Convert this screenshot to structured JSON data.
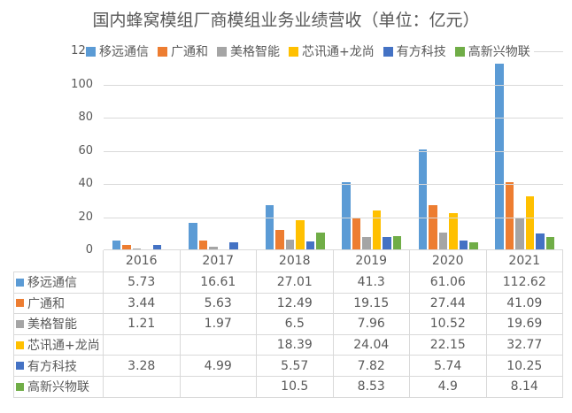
{
  "title": "国内蜂窝模组厂商模组业务业绩营收（单位：亿元）",
  "colors": {
    "title_text": "#595959",
    "axis_text": "#595959",
    "gridline": "#d9d9d9",
    "table_border": "#d9d9d9",
    "table_text": "#595959",
    "background": "#ffffff"
  },
  "chart_data": {
    "type": "bar",
    "title": "国内蜂窝模组厂商模组业务业绩营收（单位：亿元）",
    "xlabel": "",
    "ylabel": "",
    "ylim": [
      0,
      120
    ],
    "yticks": [
      0,
      20,
      40,
      60,
      80,
      100,
      120
    ],
    "grid": true,
    "legend_position": "top",
    "data_table_shown": true,
    "categories": [
      "2016",
      "2017",
      "2018",
      "2019",
      "2020",
      "2021"
    ],
    "series": [
      {
        "name": "移远通信",
        "color": "#5B9BD5",
        "values": [
          5.73,
          16.61,
          27.01,
          41.3,
          61.06,
          112.62
        ]
      },
      {
        "name": "广通和",
        "color": "#ED7D31",
        "values": [
          3.44,
          5.63,
          12.49,
          19.15,
          27.44,
          41.09
        ]
      },
      {
        "name": "美格智能",
        "color": "#A5A5A5",
        "values": [
          1.21,
          1.97,
          6.5,
          7.96,
          10.52,
          19.69
        ]
      },
      {
        "name": "芯讯通+龙尚",
        "color": "#FFC000",
        "values": [
          null,
          null,
          18.39,
          24.04,
          22.15,
          32.77
        ]
      },
      {
        "name": "有方科技",
        "color": "#4472C4",
        "values": [
          3.28,
          4.99,
          5.57,
          7.82,
          5.74,
          10.25
        ]
      },
      {
        "name": "高新兴物联",
        "color": "#70AD47",
        "values": [
          null,
          null,
          10.5,
          8.53,
          4.9,
          8.14
        ]
      }
    ]
  }
}
